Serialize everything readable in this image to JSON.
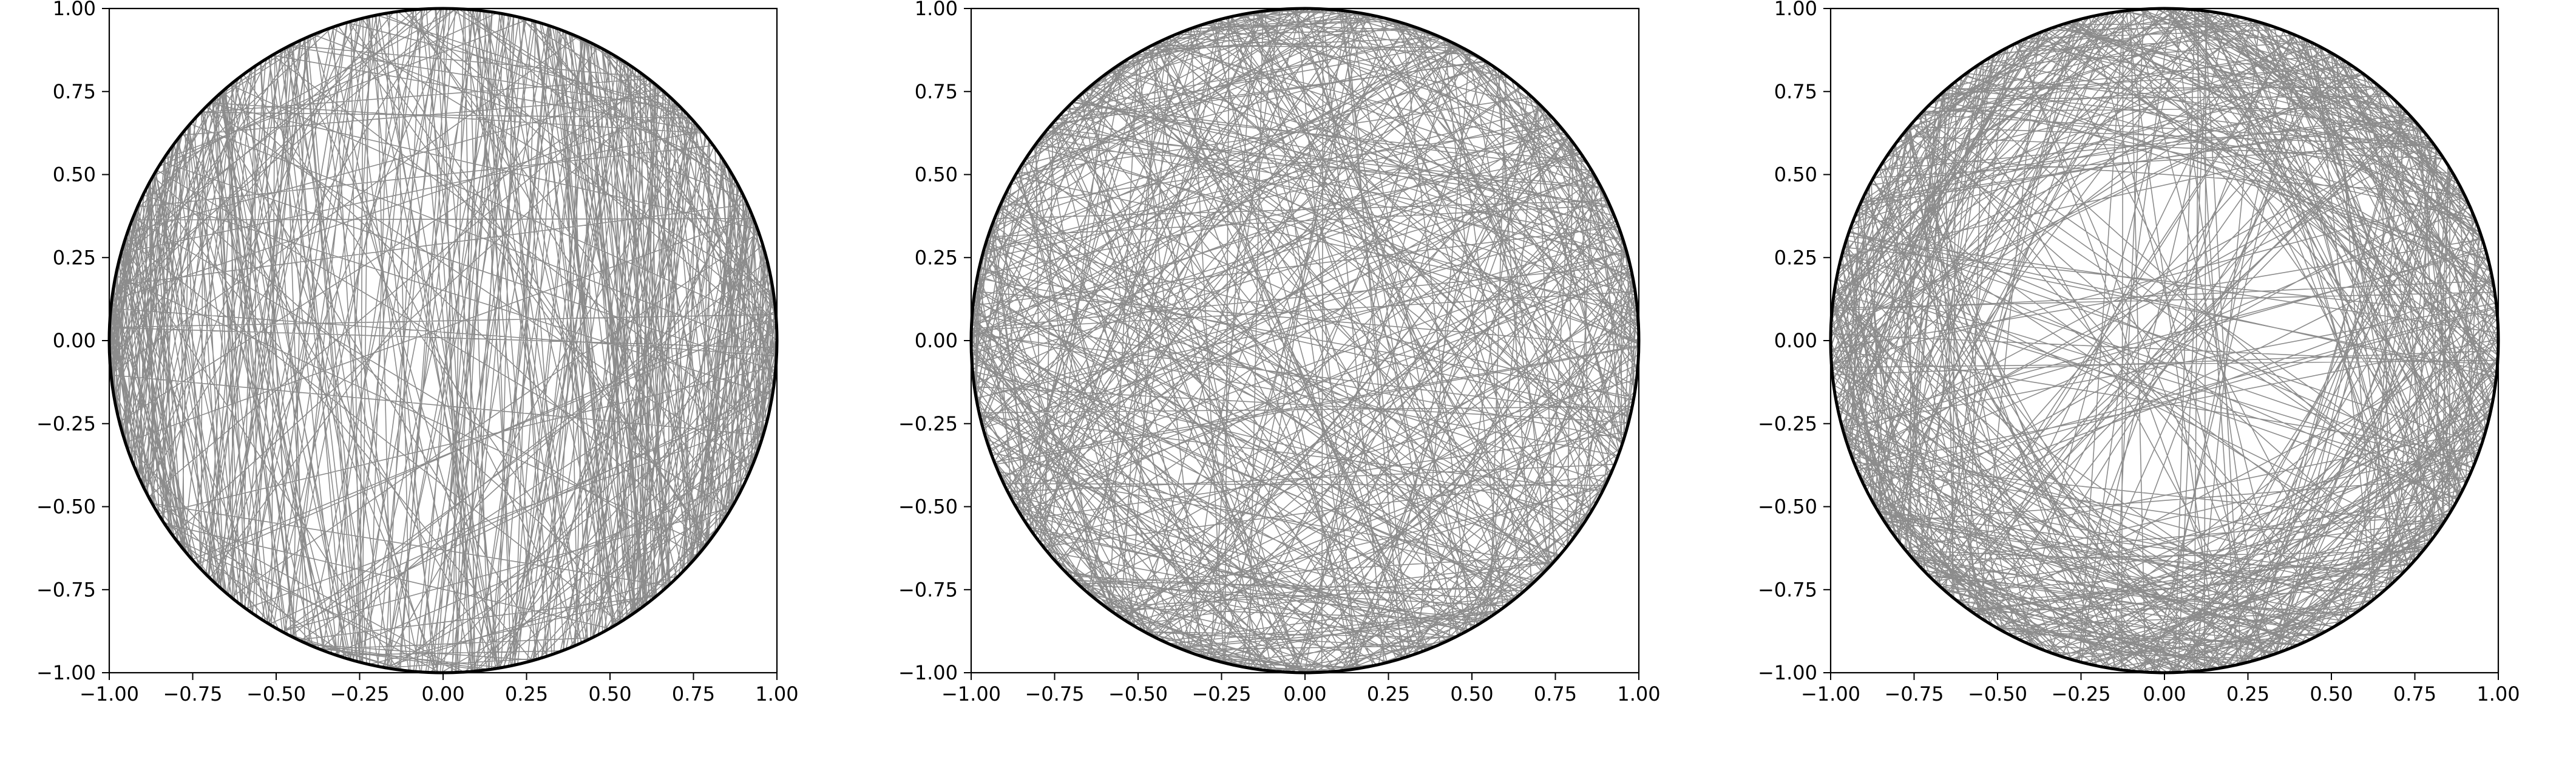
{
  "figure": {
    "background": "#ffffff",
    "line_color": "#000000",
    "circle_color": "#000000"
  },
  "chart_data": [
    {
      "type": "line",
      "description_id": "panel-1",
      "title": "",
      "xlabel": "",
      "ylabel": "",
      "xlim": [
        -1.0,
        1.0
      ],
      "ylim": [
        -1.0,
        1.0
      ],
      "xticks": [
        "−1.00",
        "−0.75",
        "−0.50",
        "−0.25",
        "0.00",
        "0.25",
        "0.50",
        "0.75",
        "1.00"
      ],
      "yticks": [
        "−1.00",
        "−0.75",
        "−0.50",
        "−0.25",
        "0.00",
        "0.25",
        "0.50",
        "0.75",
        "1.00"
      ],
      "grid": false,
      "chord_bias": "vertical",
      "circle": {
        "center": [
          0,
          0
        ],
        "radius": 1.0
      }
    },
    {
      "type": "line",
      "description_id": "panel-2",
      "title": "",
      "xlabel": "",
      "ylabel": "",
      "xlim": [
        -1.0,
        1.0
      ],
      "ylim": [
        -1.0,
        1.0
      ],
      "xticks": [
        "−1.00",
        "−0.75",
        "−0.50",
        "−0.25",
        "0.00",
        "0.25",
        "0.50",
        "0.75",
        "1.00"
      ],
      "yticks": [
        "−1.00",
        "−0.75",
        "−0.50",
        "−0.25",
        "0.00",
        "0.25",
        "0.50",
        "0.75",
        "1.00"
      ],
      "grid": false,
      "chord_bias": "uniform",
      "circle": {
        "center": [
          0,
          0
        ],
        "radius": 1.0
      }
    },
    {
      "type": "line",
      "description_id": "panel-3",
      "title": "",
      "xlabel": "",
      "ylabel": "",
      "xlim": [
        -1.0,
        1.0
      ],
      "ylim": [
        -1.0,
        1.0
      ],
      "xticks": [
        "−1.00",
        "−0.75",
        "−0.50",
        "−0.25",
        "0.00",
        "0.25",
        "0.50",
        "0.75",
        "1.00"
      ],
      "yticks": [
        "−1.00",
        "−0.75",
        "−0.50",
        "−0.25",
        "0.00",
        "0.25",
        "0.50",
        "0.75",
        "1.00"
      ],
      "grid": false,
      "chord_bias": "boundary",
      "circle": {
        "center": [
          0,
          0
        ],
        "radius": 1.0
      }
    }
  ]
}
